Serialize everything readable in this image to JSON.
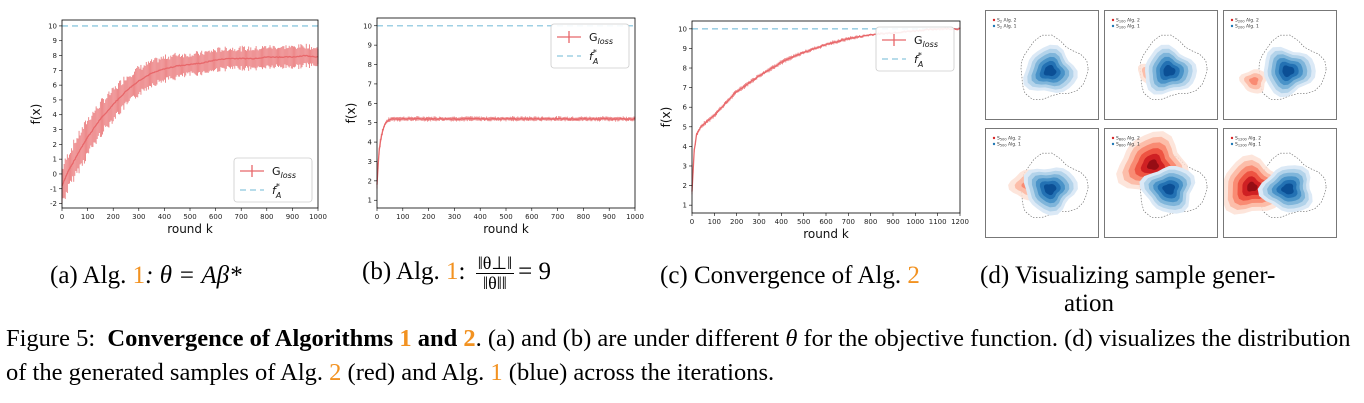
{
  "figure": {
    "label": "Figure 5:",
    "title_bold_prefix": "Convergence of Algorithms ",
    "title_ref1": "1",
    "title_and": " and ",
    "title_ref2": "2",
    "title_period": ".",
    "text_part1": " (a) and (b) are under different ",
    "theta": "θ",
    "text_part2": " for the objective function. (d) visualizes the distribution of the generated samples of Alg. ",
    "ref_red": "2",
    "text_part3": " (red) and Alg. ",
    "ref_blue": "1",
    "text_part4": " (blue) across the iterations."
  },
  "subcaptions": {
    "a": {
      "prefix": "(a) Alg. ",
      "ref": "1",
      "rest": ": θ = Aβ*"
    },
    "b": {
      "prefix": "(b) Alg. ",
      "ref": "1",
      "colon": ":",
      "num": "‖θ⊥‖",
      "den": "‖θ‖‖",
      "rest": "= 9"
    },
    "c": {
      "prefix": "(c) Convergence of Alg. ",
      "ref": "2"
    },
    "d": {
      "line1": "(d) Visualizing sample gener-",
      "line2": "ation"
    }
  },
  "colors": {
    "orange": "#f29221",
    "gloss": "#e8676a",
    "target": "#9fd0e4"
  },
  "chart_data": [
    {
      "type": "line",
      "panel": "a",
      "xlabel": "round k",
      "ylabel": "f(x)",
      "xlim": [
        0,
        1000
      ],
      "ylim": [
        -2.3,
        10.4
      ],
      "xticks": [
        0,
        100,
        200,
        300,
        400,
        500,
        600,
        700,
        800,
        900,
        1000
      ],
      "yticks": [
        -2,
        -1,
        0,
        1,
        2,
        3,
        4,
        5,
        6,
        7,
        8,
        9,
        10
      ],
      "legend_position": "bottom-right",
      "series": [
        {
          "name": "G_loss",
          "label": "G",
          "sub": "loss",
          "style": "errorbar",
          "x": [
            0,
            25,
            50,
            100,
            150,
            200,
            250,
            300,
            350,
            400,
            450,
            500,
            550,
            600,
            650,
            700,
            750,
            800,
            850,
            900,
            950,
            1000
          ],
          "y": [
            -0.8,
            0.2,
            1.0,
            2.5,
            3.7,
            4.7,
            5.6,
            6.3,
            6.8,
            7.1,
            7.3,
            7.4,
            7.5,
            7.7,
            7.8,
            7.8,
            7.8,
            7.9,
            7.9,
            7.9,
            8.0,
            7.9
          ],
          "err": [
            1.2,
            1.2,
            1.2,
            1.2,
            1.1,
            1.0,
            1.0,
            0.9,
            0.8,
            0.8,
            0.8,
            0.7,
            0.7,
            0.7,
            0.7,
            0.7,
            0.7,
            0.7,
            0.7,
            0.7,
            0.7,
            0.6
          ]
        },
        {
          "name": "f*_A",
          "label": "f",
          "sub": "A",
          "sup": "*",
          "style": "dashed",
          "value": 10
        }
      ]
    },
    {
      "type": "line",
      "panel": "b",
      "xlabel": "round k",
      "ylabel": "f(x)",
      "xlim": [
        0,
        1000
      ],
      "ylim": [
        0.6,
        10.4
      ],
      "xticks": [
        0,
        100,
        200,
        300,
        400,
        500,
        600,
        700,
        800,
        900,
        1000
      ],
      "yticks": [
        1,
        2,
        3,
        4,
        5,
        6,
        7,
        8,
        9,
        10
      ],
      "legend_position": "top-right",
      "series": [
        {
          "name": "G_loss",
          "label": "G",
          "sub": "loss",
          "style": "errorbar",
          "x": [
            0,
            5,
            10,
            20,
            30,
            40,
            60,
            80,
            100,
            150,
            200,
            300,
            400,
            500,
            600,
            700,
            800,
            900,
            1000
          ],
          "y": [
            1.8,
            3.0,
            3.8,
            4.5,
            4.9,
            5.1,
            5.2,
            5.2,
            5.2,
            5.2,
            5.2,
            5.2,
            5.2,
            5.2,
            5.2,
            5.2,
            5.2,
            5.2,
            5.2
          ],
          "err": [
            0.2,
            0.2,
            0.2,
            0.15,
            0.1,
            0.1,
            0.1,
            0.1,
            0.1,
            0.1,
            0.1,
            0.1,
            0.1,
            0.1,
            0.1,
            0.1,
            0.1,
            0.1,
            0.1
          ]
        },
        {
          "name": "f*_A",
          "label": "f",
          "sub": "A",
          "sup": "*",
          "style": "dashed",
          "value": 10
        }
      ]
    },
    {
      "type": "line",
      "panel": "c",
      "xlabel": "round k",
      "ylabel": "f(x)",
      "xlim": [
        0,
        1200
      ],
      "ylim": [
        0.6,
        10.4
      ],
      "xticks": [
        0,
        100,
        200,
        300,
        400,
        500,
        600,
        700,
        800,
        900,
        1000,
        1100,
        1200
      ],
      "yticks": [
        1,
        2,
        3,
        4,
        5,
        6,
        7,
        8,
        9,
        10
      ],
      "legend_position": "top-right",
      "series": [
        {
          "name": "G_loss",
          "label": "G",
          "sub": "loss",
          "style": "errorbar",
          "x": [
            0,
            10,
            20,
            40,
            60,
            100,
            150,
            200,
            300,
            400,
            500,
            600,
            700,
            800,
            900,
            1000,
            1100,
            1200
          ],
          "y": [
            1.7,
            3.8,
            4.6,
            5.0,
            5.2,
            5.6,
            6.2,
            6.8,
            7.6,
            8.3,
            8.8,
            9.2,
            9.5,
            9.7,
            9.8,
            9.9,
            10.0,
            10.0
          ],
          "err": [
            0.15,
            0.1,
            0.1,
            0.1,
            0.1,
            0.1,
            0.1,
            0.1,
            0.1,
            0.1,
            0.08,
            0.08,
            0.08,
            0.05,
            0.05,
            0.05,
            0.05,
            0.05
          ]
        },
        {
          "name": "f*_A",
          "label": "f",
          "sub": "A",
          "sup": "*",
          "style": "dashed",
          "value": 10
        }
      ]
    }
  ],
  "viz": {
    "cells": [
      {
        "red": "S_2 Alg. 2",
        "red_i": "2",
        "blue": "S_2 Alg. 1",
        "blue_i": "2",
        "redStrength": 0.0
      },
      {
        "red": "S_100 Alg. 2",
        "red_i": "100",
        "blue": "S_100 Alg. 1",
        "blue_i": "100",
        "redStrength": 0.15
      },
      {
        "red": "S_200 Alg. 2",
        "red_i": "200",
        "blue": "S_200 Alg. 1",
        "blue_i": "200",
        "redStrength": 0.2
      },
      {
        "red": "S_500 Alg. 2",
        "red_i": "500",
        "blue": "S_500 Alg. 1",
        "blue_i": "500",
        "redStrength": 0.35
      },
      {
        "red": "S_800 Alg. 2",
        "red_i": "800",
        "blue": "S_800 Alg. 1",
        "blue_i": "800",
        "redStrength": 1.0
      },
      {
        "red": "S_1200 Alg. 2",
        "red_i": "1200",
        "blue": "S_1200 Alg. 1",
        "blue_i": "1200",
        "redStrength": 0.9
      }
    ],
    "alg2": " Alg. 2",
    "alg1": " Alg. 1",
    "S": "S"
  }
}
